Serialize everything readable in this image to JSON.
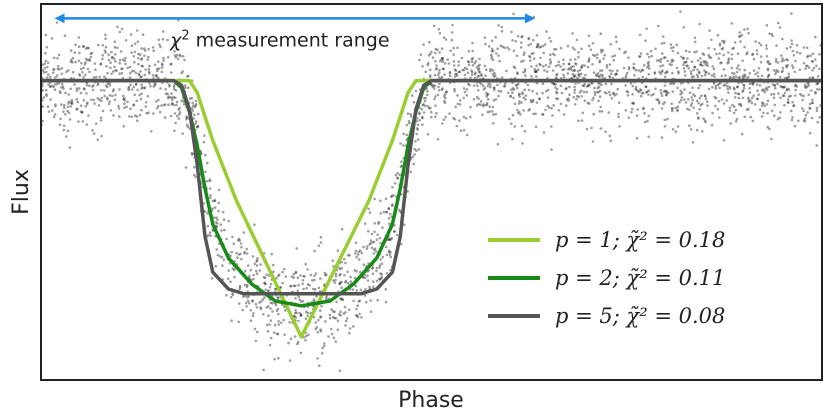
{
  "chart_data": {
    "type": "line",
    "title": "",
    "xlabel": "Phase",
    "ylabel": "Flux",
    "xlim": [
      0,
      1
    ],
    "ylim": [
      -1.25,
      0.32
    ],
    "grid": false,
    "legend_position": "lower-right",
    "annotation": {
      "text_pre": "χ",
      "text_sup": "2",
      "text_post": " measurement range",
      "arrow_start_x": 0.02,
      "arrow_end_x": 0.63,
      "arrow_y": 0.26,
      "arrow_color": "#1e88e5"
    },
    "transit": {
      "center": 0.3333,
      "half_width": 0.14,
      "depth": 1.0
    },
    "series": [
      {
        "name": "p = 1;  χ̃² = 0.18",
        "p": 1,
        "chi2": "0.18",
        "color": "#9acd32",
        "x": [
          0.0,
          0.19,
          0.2,
          0.22,
          0.25,
          0.3333,
          0.42,
          0.45,
          0.47,
          0.48,
          1.0
        ],
        "y": [
          0,
          0,
          -0.05,
          -0.25,
          -0.5,
          -1.07,
          -0.5,
          -0.25,
          -0.05,
          0,
          0
        ]
      },
      {
        "name": "p = 2;  χ̃² = 0.11",
        "p": 2,
        "chi2": "0.11",
        "color": "#188a18",
        "x": [
          0.0,
          0.17,
          0.18,
          0.19,
          0.2,
          0.21,
          0.22,
          0.24,
          0.27,
          0.3,
          0.3333,
          0.37,
          0.4,
          0.43,
          0.45,
          0.46,
          0.47,
          0.48,
          0.49,
          0.5,
          1.0
        ],
        "y": [
          0,
          0,
          -0.03,
          -0.13,
          -0.27,
          -0.45,
          -0.6,
          -0.74,
          -0.85,
          -0.92,
          -0.94,
          -0.92,
          -0.85,
          -0.74,
          -0.6,
          -0.45,
          -0.27,
          -0.13,
          -0.03,
          0,
          0
        ]
      },
      {
        "name": "p = 5;  χ̃² = 0.08",
        "p": 5,
        "chi2": "0.08",
        "color": "#555555",
        "x": [
          0.0,
          0.17,
          0.18,
          0.19,
          0.2,
          0.21,
          0.22,
          0.24,
          0.26,
          0.3333,
          0.41,
          0.43,
          0.45,
          0.46,
          0.47,
          0.48,
          0.49,
          0.5,
          1.0
        ],
        "y": [
          0,
          0,
          -0.02,
          -0.12,
          -0.35,
          -0.65,
          -0.8,
          -0.87,
          -0.89,
          -0.89,
          -0.89,
          -0.87,
          -0.8,
          -0.65,
          -0.35,
          -0.12,
          -0.02,
          0,
          0
        ]
      }
    ],
    "observations": {
      "color": "#2b2b2b",
      "points": 2600,
      "noise_sigma": 0.1,
      "seed": 7
    }
  }
}
